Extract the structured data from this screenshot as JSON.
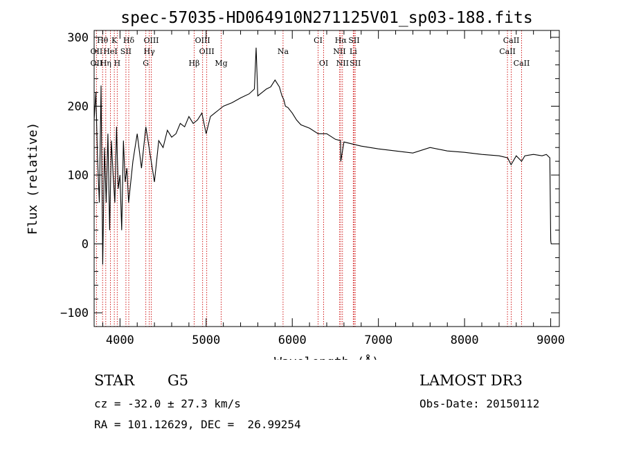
{
  "chart_data": {
    "type": "line",
    "title": "spec-57035-HD064910N271125V01_sp03-188.fits",
    "xlabel": "Wavelength (Å)",
    "ylabel": "Flux (relative)",
    "xlim": [
      3700,
      9100
    ],
    "ylim": [
      -120,
      310
    ],
    "x_ticks": [
      4000,
      5000,
      6000,
      7000,
      8000,
      9000
    ],
    "y_ticks": [
      -100,
      0,
      100,
      200,
      300
    ],
    "grid": false,
    "series": [
      {
        "name": "flux",
        "x": [
          3700,
          3720,
          3740,
          3760,
          3780,
          3800,
          3820,
          3840,
          3860,
          3880,
          3900,
          3920,
          3940,
          3960,
          3980,
          4000,
          4020,
          4040,
          4060,
          4080,
          4100,
          4150,
          4200,
          4250,
          4300,
          4350,
          4400,
          4450,
          4500,
          4550,
          4600,
          4650,
          4700,
          4750,
          4800,
          4850,
          4900,
          4950,
          5000,
          5050,
          5100,
          5150,
          5200,
          5300,
          5400,
          5500,
          5560,
          5580,
          5600,
          5650,
          5700,
          5750,
          5800,
          5850,
          5880,
          5900,
          5920,
          5950,
          6000,
          6050,
          6100,
          6200,
          6300,
          6400,
          6500,
          6560,
          6563,
          6600,
          6700,
          6800,
          6900,
          7000,
          7200,
          7400,
          7600,
          7800,
          8000,
          8200,
          8400,
          8500,
          8540,
          8600,
          8662,
          8700,
          8800,
          8900,
          8950,
          8990,
          9000,
          9005
        ],
        "y": [
          180,
          220,
          120,
          60,
          230,
          -30,
          140,
          60,
          160,
          20,
          150,
          100,
          60,
          170,
          80,
          100,
          20,
          150,
          90,
          110,
          60,
          120,
          160,
          110,
          170,
          130,
          90,
          150,
          140,
          165,
          155,
          160,
          175,
          170,
          185,
          175,
          180,
          190,
          160,
          185,
          190,
          195,
          200,
          205,
          212,
          218,
          225,
          285,
          215,
          220,
          225,
          228,
          238,
          228,
          215,
          210,
          200,
          198,
          190,
          180,
          173,
          168,
          160,
          160,
          152,
          150,
          120,
          148,
          145,
          142,
          140,
          138,
          135,
          132,
          140,
          135,
          133,
          130,
          128,
          125,
          115,
          128,
          120,
          128,
          130,
          128,
          130,
          125,
          5,
          0
        ]
      }
    ],
    "line_labels": [
      {
        "name": "Hθ",
        "x": 3798,
        "row": 1
      },
      {
        "name": "K",
        "x": 3934,
        "row": 1
      },
      {
        "name": "Hδ",
        "x": 4102,
        "row": 1
      },
      {
        "name": "OIII",
        "x": 4363,
        "row": 1
      },
      {
        "name": "OIII",
        "x": 4959,
        "row": 1
      },
      {
        "name": "CI",
        "x": 6300,
        "row": 1
      },
      {
        "name": "Hα",
        "x": 6563,
        "row": 1
      },
      {
        "name": "SII",
        "x": 6717,
        "row": 1
      },
      {
        "name": "CaII",
        "x": 8542,
        "row": 1
      },
      {
        "name": "OII",
        "x": 3727,
        "row": 2
      },
      {
        "name": "HeI",
        "x": 3889,
        "row": 2
      },
      {
        "name": "SII",
        "x": 4069,
        "row": 2
      },
      {
        "name": "Hγ",
        "x": 4340,
        "row": 2
      },
      {
        "name": "OIII",
        "x": 5007,
        "row": 2
      },
      {
        "name": "Na",
        "x": 5893,
        "row": 2
      },
      {
        "name": "NII",
        "x": 6548,
        "row": 2
      },
      {
        "name": "Li",
        "x": 6708,
        "row": 2
      },
      {
        "name": "CaII",
        "x": 8498,
        "row": 2
      },
      {
        "name": "OII",
        "x": 3727,
        "row": 3
      },
      {
        "name": "Hη",
        "x": 3835,
        "row": 3
      },
      {
        "name": "H",
        "x": 3968,
        "row": 3
      },
      {
        "name": "G",
        "x": 4300,
        "row": 3
      },
      {
        "name": "Hβ",
        "x": 4861,
        "row": 3
      },
      {
        "name": "Mg",
        "x": 5175,
        "row": 3
      },
      {
        "name": "OI",
        "x": 6364,
        "row": 3
      },
      {
        "name": "NII",
        "x": 6583,
        "row": 3
      },
      {
        "name": "SII",
        "x": 6731,
        "row": 3
      },
      {
        "name": "CaII",
        "x": 8662,
        "row": 3
      }
    ],
    "line_positions": [
      3727,
      3798,
      3835,
      3889,
      3934,
      3968,
      4069,
      4102,
      4300,
      4340,
      4363,
      4861,
      4959,
      5007,
      5175,
      5893,
      6300,
      6364,
      6548,
      6563,
      6583,
      6708,
      6717,
      6731,
      8498,
      8542,
      8662
    ]
  },
  "info": {
    "object_class": "STAR",
    "subclass": "G5",
    "survey": "LAMOST DR3",
    "cz": "cz = -32.0 ± 27.3 km/s",
    "obs_date": "Obs-Date: 20150112",
    "coords": "RA = 101.12629, DEC =  26.99254"
  },
  "colors": {
    "line": "#000000",
    "marker": "#cc0000"
  }
}
